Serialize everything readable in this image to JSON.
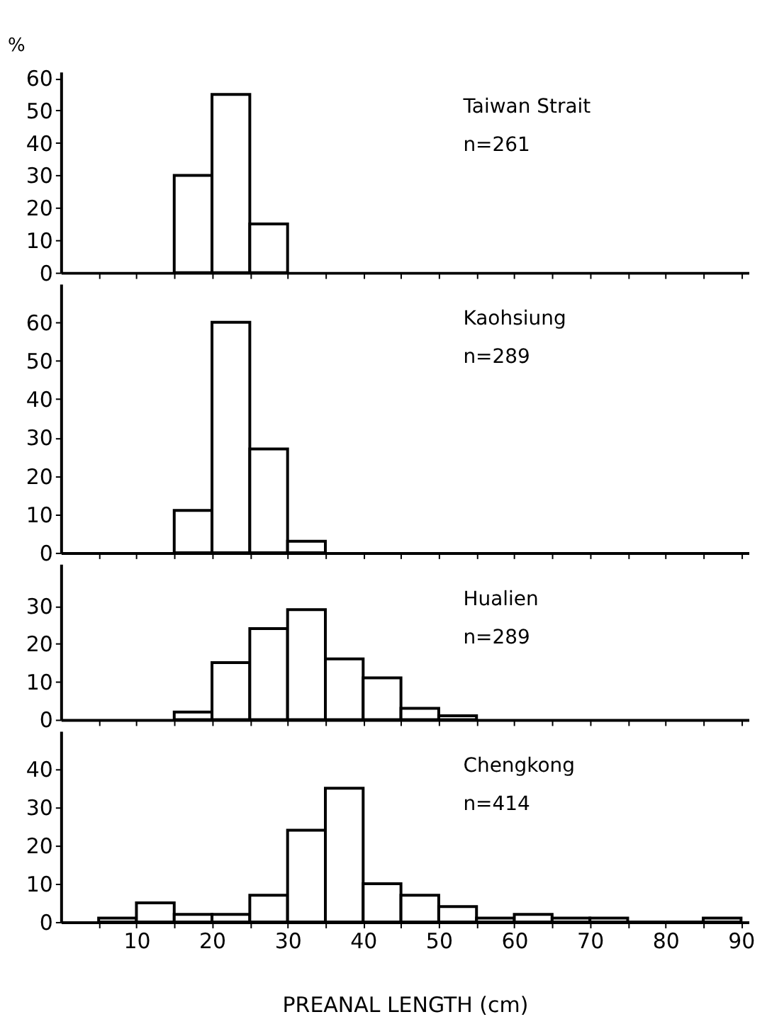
{
  "chart_data": [
    {
      "type": "histogram",
      "ylabel": "%",
      "annotations": [
        "Taiwan Strait",
        "n=261"
      ],
      "bins": [
        15,
        20,
        25,
        30
      ],
      "values": [
        30,
        55,
        15
      ],
      "xlim": [
        0,
        91
      ],
      "xticks": [
        {
          "value": 5,
          "label": null
        },
        {
          "value": 10,
          "label": null
        },
        {
          "value": 15,
          "label": null
        },
        {
          "value": 20,
          "label": null
        },
        {
          "value": 25,
          "label": null
        },
        {
          "value": 30,
          "label": null
        },
        {
          "value": 35,
          "label": null
        },
        {
          "value": 40,
          "label": null
        },
        {
          "value": 45,
          "label": null
        },
        {
          "value": 50,
          "label": null
        },
        {
          "value": 55,
          "label": null
        },
        {
          "value": 60,
          "label": null
        },
        {
          "value": 65,
          "label": null
        },
        {
          "value": 70,
          "label": null
        },
        {
          "value": 75,
          "label": null
        },
        {
          "value": 80,
          "label": null
        },
        {
          "value": 85,
          "label": null
        },
        {
          "value": 90,
          "label": null
        }
      ],
      "ylim": [
        0,
        62
      ],
      "yticks": [
        0,
        10,
        20,
        30,
        40,
        50,
        60
      ],
      "tick_labels": "y",
      "grid": false,
      "color": "#000000"
    },
    {
      "type": "histogram",
      "annotations": [
        "Kaohsiung",
        "n=289"
      ],
      "bins": [
        15,
        20,
        25,
        30,
        35
      ],
      "values": [
        11,
        60,
        27,
        3
      ],
      "xlim": [
        0,
        91
      ],
      "xticks": [
        {
          "value": 5,
          "label": null
        },
        {
          "value": 10,
          "label": null
        },
        {
          "value": 15,
          "label": null
        },
        {
          "value": 20,
          "label": null
        },
        {
          "value": 25,
          "label": null
        },
        {
          "value": 30,
          "label": null
        },
        {
          "value": 35,
          "label": null
        },
        {
          "value": 40,
          "label": null
        },
        {
          "value": 45,
          "label": null
        },
        {
          "value": 50,
          "label": null
        },
        {
          "value": 55,
          "label": null
        },
        {
          "value": 60,
          "label": null
        },
        {
          "value": 65,
          "label": null
        },
        {
          "value": 70,
          "label": null
        },
        {
          "value": 75,
          "label": null
        },
        {
          "value": 80,
          "label": null
        },
        {
          "value": 85,
          "label": null
        },
        {
          "value": 90,
          "label": null
        }
      ],
      "ylim": [
        0,
        70
      ],
      "yticks": [
        0,
        10,
        20,
        30,
        40,
        50,
        60
      ],
      "tick_labels": "y",
      "grid": false,
      "color": "#000000"
    },
    {
      "type": "histogram",
      "annotations": [
        "Hualien",
        "n=289"
      ],
      "bins": [
        15,
        20,
        25,
        30,
        35,
        40,
        45,
        50,
        55
      ],
      "values": [
        2,
        15,
        24,
        29,
        16,
        11,
        3,
        1
      ],
      "xlim": [
        0,
        91
      ],
      "xticks": [
        {
          "value": 5,
          "label": null
        },
        {
          "value": 10,
          "label": null
        },
        {
          "value": 15,
          "label": null
        },
        {
          "value": 20,
          "label": null
        },
        {
          "value": 25,
          "label": null
        },
        {
          "value": 30,
          "label": null
        },
        {
          "value": 35,
          "label": null
        },
        {
          "value": 40,
          "label": null
        },
        {
          "value": 45,
          "label": null
        },
        {
          "value": 50,
          "label": null
        },
        {
          "value": 55,
          "label": null
        },
        {
          "value": 60,
          "label": null
        },
        {
          "value": 65,
          "label": null
        },
        {
          "value": 70,
          "label": null
        },
        {
          "value": 75,
          "label": null
        },
        {
          "value": 80,
          "label": null
        },
        {
          "value": 85,
          "label": null
        },
        {
          "value": 90,
          "label": null
        }
      ],
      "ylim": [
        0,
        41
      ],
      "yticks": [
        0,
        10,
        20,
        30
      ],
      "tick_labels": "y",
      "grid": false,
      "color": "#000000"
    },
    {
      "type": "histogram",
      "xlabel": "PREANAL  LENGTH (cm)",
      "annotations": [
        "Chengkong",
        "n=414"
      ],
      "bins": [
        5,
        10,
        15,
        20,
        25,
        30,
        35,
        40,
        45,
        50,
        55,
        60,
        65,
        70,
        75,
        80,
        85,
        90
      ],
      "values": [
        1,
        5,
        2,
        2,
        7,
        24,
        35,
        10,
        7,
        4,
        1,
        2,
        1,
        1,
        0,
        0,
        1
      ],
      "xlim": [
        0,
        91
      ],
      "xticks": [
        {
          "value": 5,
          "label": null
        },
        10,
        {
          "value": 15,
          "label": null
        },
        20,
        {
          "value": 25,
          "label": null
        },
        30,
        {
          "value": 35,
          "label": null
        },
        40,
        {
          "value": 45,
          "label": null
        },
        50,
        {
          "value": 55,
          "label": null
        },
        60,
        {
          "value": 65,
          "label": null
        },
        70,
        {
          "value": 75,
          "label": null
        },
        80,
        {
          "value": 85,
          "label": null
        },
        90
      ],
      "ylim": [
        0,
        50
      ],
      "yticks": [
        0,
        10,
        20,
        30,
        40
      ],
      "grid": false,
      "color": "#000000"
    }
  ]
}
